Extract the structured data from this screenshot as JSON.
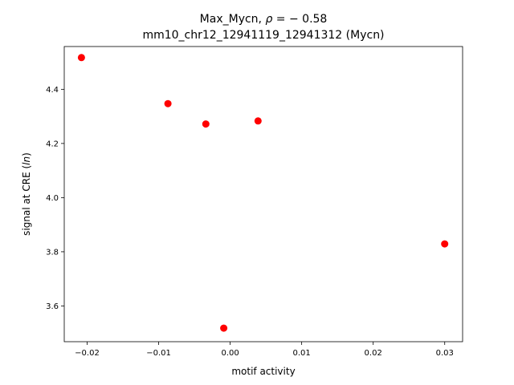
{
  "chart_data": {
    "type": "scatter",
    "title_line1_prefix": "Max_Mycn, ",
    "title_line1_rho": "ρ",
    "title_line1_suffix": " = − 0.58",
    "title_line2": "mm10_chr12_12941119_12941312 (Mycn)",
    "xlabel": "motif activity",
    "ylabel_prefix": "signal at CRE (",
    "ylabel_italic": "ln",
    "ylabel_suffix": ")",
    "xlim": [
      -0.0232,
      0.0325
    ],
    "ylim": [
      3.468,
      4.558
    ],
    "x_ticks": [
      {
        "value": -0.02,
        "label": "−0.02"
      },
      {
        "value": -0.01,
        "label": "−0.01"
      },
      {
        "value": 0.0,
        "label": "0.00"
      },
      {
        "value": 0.01,
        "label": "0.01"
      },
      {
        "value": 0.02,
        "label": "0.02"
      },
      {
        "value": 0.03,
        "label": "0.03"
      }
    ],
    "y_ticks": [
      {
        "value": 3.6,
        "label": "3.6"
      },
      {
        "value": 3.8,
        "label": "3.8"
      },
      {
        "value": 4.0,
        "label": "4.0"
      },
      {
        "value": 4.2,
        "label": "4.2"
      },
      {
        "value": 4.4,
        "label": "4.4"
      }
    ],
    "points": [
      {
        "x": -0.0208,
        "y": 4.517
      },
      {
        "x": -0.0087,
        "y": 4.347
      },
      {
        "x": -0.0034,
        "y": 4.272
      },
      {
        "x": 0.0039,
        "y": 4.283
      },
      {
        "x": -0.0009,
        "y": 3.518
      },
      {
        "x": 0.03,
        "y": 3.829
      }
    ],
    "marker_color": "#ff0000",
    "grid": false,
    "legend": "none"
  }
}
